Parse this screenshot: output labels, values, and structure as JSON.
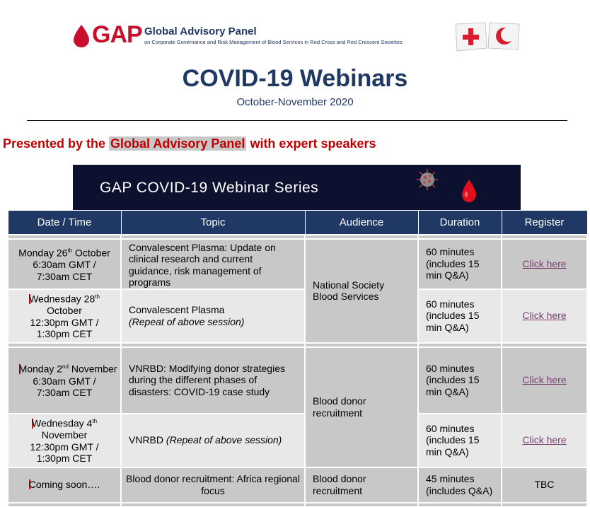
{
  "header": {
    "logo_text": "GAP",
    "org_name": "Global Advisory Panel",
    "org_subtitle": "on Corporate Governance and Risk Management of Blood Services in Red Cross and Red Crescent Societies"
  },
  "title": "COVID-19 Webinars",
  "subtitle": "October-November 2020",
  "presented": {
    "prefix": "Presented by the ",
    "highlight": "Global Advisory Panel",
    "suffix": " with expert speakers"
  },
  "banner": {
    "text": "GAP COVID-19 Webinar Series"
  },
  "table": {
    "headers": [
      "Date / Time",
      "Topic",
      "Audience",
      "Duration",
      "Register"
    ],
    "rows": [
      {
        "date_pre": "Monday 26",
        "date_sup": "th",
        "date_post": " October",
        "time1": "6:30am GMT /",
        "time2": "7:30am CET",
        "topic": "Convalescent Plasma: Update on clinical research and current guidance, risk management of programs",
        "topic_note": "",
        "duration": "60 minutes (includes 15 min Q&A)",
        "register": "Click here"
      },
      {
        "date_pre": "Wednesday 28",
        "date_sup": "th",
        "date_post": " October",
        "time1": "12:30pm GMT /",
        "time2": "1:30pm CET",
        "topic": "Convalescent Plasma",
        "topic_note": "(Repeat of above session)",
        "duration": "60 minutes (includes 15 min Q&A)",
        "register": "Click here"
      },
      {
        "date_pre": "Monday 2",
        "date_sup": "nd",
        "date_post": " November",
        "time1": "6:30am GMT /",
        "time2": "7:30am CET",
        "topic": "VNRBD: Modifying donor strategies during the different phases of disasters: COVID-19 case study",
        "topic_note": "",
        "duration": "60 minutes (includes 15 min Q&A)",
        "register": "Click here"
      },
      {
        "date_pre": "Wednesday 4",
        "date_sup": "th",
        "date_post": " November",
        "time1": "12:30pm GMT /",
        "time2": "1:30pm CET",
        "topic": "VNRBD ",
        "topic_note": "(Repeat of above session)",
        "duration": "60 minutes (includes 15 min Q&A)",
        "register": "Click here"
      },
      {
        "date": "Coming soon….",
        "topic": "Blood donor recruitment: Africa regional focus",
        "audience": "Blood donor recruitment",
        "duration": "45 minutes (includes Q&A)",
        "register": "TBC"
      }
    ],
    "audience_groups": [
      "National Society Blood Services",
      "Blood donor recruitment"
    ]
  },
  "colors": {
    "navy": "#1f3864",
    "red": "#c00000",
    "row_dark": "#c8c8c8",
    "row_light": "#e8e8e8",
    "link": "#7b3f6e"
  }
}
